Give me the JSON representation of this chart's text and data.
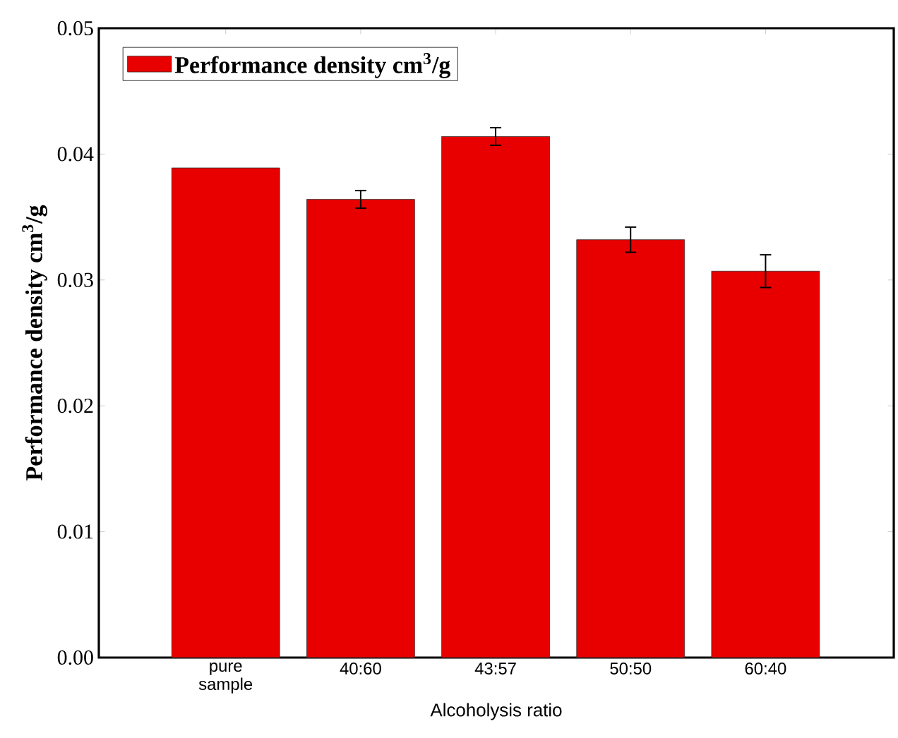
{
  "chart_data": {
    "type": "bar",
    "xlabel": "Alcoholysis ratio",
    "ylabel": "Performance density cm$^{3}$/g",
    "categories": [
      "pure sample",
      "40:60",
      "43:57",
      "50:50",
      "60:40"
    ],
    "series": [
      {
        "name": "Performance density cm$^{3}$/g",
        "color": "#e80000",
        "values": [
          0.0389,
          0.0364,
          0.0414,
          0.0332,
          0.0307
        ],
        "errors": [
          null,
          0.0007,
          0.0007,
          0.001,
          0.0013
        ]
      }
    ],
    "ylim": [
      0,
      0.05
    ],
    "yticks": [
      {
        "value": 0,
        "label": "0.00"
      },
      {
        "value": 0.01,
        "label": "0.01"
      },
      {
        "value": 0.02,
        "label": "0.02"
      },
      {
        "value": 0.03,
        "label": "0.03"
      },
      {
        "value": 0.04,
        "label": "0.04"
      },
      {
        "value": 0.05,
        "label": "0.05"
      }
    ],
    "legend": "top left"
  }
}
